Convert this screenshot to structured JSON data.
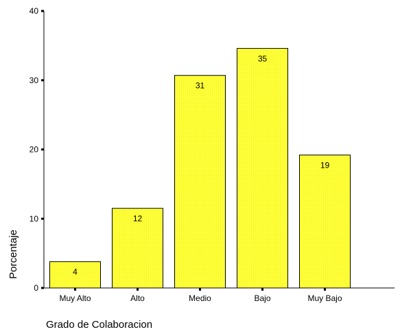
{
  "chart_data": {
    "type": "bar",
    "categories": [
      "Muy Alto",
      "Alto",
      "Medio",
      "Bajo",
      "Muy Bajo"
    ],
    "values": [
      4,
      12,
      31,
      35,
      19
    ],
    "value_labels": [
      "4",
      "12",
      "31",
      "35",
      "19"
    ],
    "bar_heights": [
      3.8,
      11.5,
      30.7,
      34.6,
      19.2
    ],
    "xlabel": "Grado de Colaboracion",
    "ylabel": "Porcentaje",
    "ylim": [
      0,
      40
    ],
    "yticks": [
      "0",
      "10",
      "20",
      "30",
      "40"
    ],
    "grid": false,
    "bar_color": "#ffff33",
    "bar_edge_color": "#000000"
  }
}
